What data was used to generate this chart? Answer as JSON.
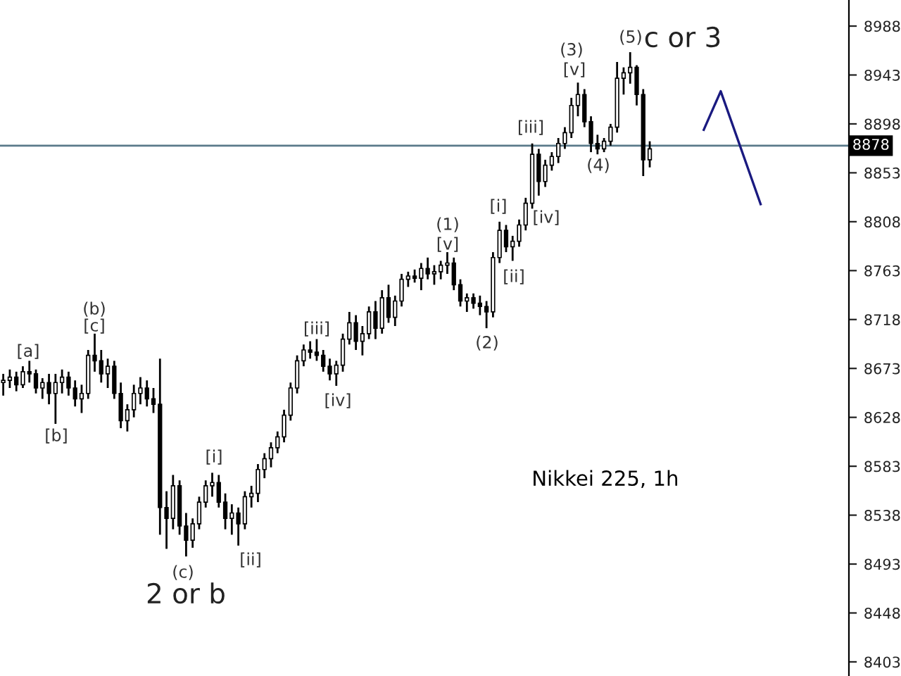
{
  "chart_data": {
    "type": "candlestick",
    "title": "Nikkei 225, 1h",
    "categories": [
      null,
      null,
      null,
      null,
      null,
      null,
      null,
      null,
      null,
      null,
      null,
      null,
      null,
      null,
      null,
      null,
      null,
      null,
      null,
      null,
      null,
      null,
      null,
      null,
      null,
      null,
      null,
      null,
      null,
      null,
      null,
      null,
      null,
      null,
      null,
      null,
      null,
      null,
      null,
      null,
      null,
      null,
      null,
      null,
      null,
      null,
      null,
      null,
      null,
      null,
      null,
      null,
      null,
      null,
      null,
      null,
      null,
      null,
      null,
      null,
      null,
      null,
      null,
      null,
      null,
      null,
      null,
      null,
      null,
      null,
      null,
      null,
      null,
      null,
      null,
      null,
      null,
      null,
      null,
      null,
      null,
      null,
      null,
      null,
      null,
      null,
      null,
      null,
      null,
      null,
      null,
      null,
      null,
      null,
      null,
      null,
      null,
      null,
      null,
      null,
      null,
      null,
      null,
      null,
      null,
      null,
      null,
      null,
      null,
      null,
      null,
      null,
      null,
      null,
      null,
      null,
      null,
      null,
      null,
      null,
      null,
      null,
      null,
      null,
      null,
      null,
      null,
      null,
      null,
      null
    ],
    "ohlc": [
      [
        8660,
        8668,
        8648,
        8662
      ],
      [
        8662,
        8672,
        8655,
        8665
      ],
      [
        8665,
        8670,
        8652,
        8658
      ],
      [
        8658,
        8675,
        8655,
        8670
      ],
      [
        8670,
        8680,
        8660,
        8668
      ],
      [
        8668,
        8672,
        8650,
        8655
      ],
      [
        8655,
        8664,
        8645,
        8660
      ],
      [
        8660,
        8668,
        8640,
        8650
      ],
      [
        8650,
        8668,
        8622,
        8660
      ],
      [
        8660,
        8672,
        8650,
        8665
      ],
      [
        8665,
        8670,
        8648,
        8655
      ],
      [
        8655,
        8662,
        8638,
        8645
      ],
      [
        8645,
        8658,
        8632,
        8650
      ],
      [
        8650,
        8690,
        8645,
        8685
      ],
      [
        8685,
        8705,
        8670,
        8680
      ],
      [
        8680,
        8690,
        8660,
        8668
      ],
      [
        8668,
        8682,
        8655,
        8675
      ],
      [
        8675,
        8680,
        8645,
        8650
      ],
      [
        8650,
        8660,
        8618,
        8625
      ],
      [
        8625,
        8640,
        8615,
        8635
      ],
      [
        8635,
        8658,
        8628,
        8650
      ],
      [
        8650,
        8665,
        8640,
        8655
      ],
      [
        8655,
        8662,
        8638,
        8645
      ],
      [
        8645,
        8655,
        8632,
        8640
      ],
      [
        8640,
        8682,
        8520,
        8545
      ],
      [
        8545,
        8560,
        8507,
        8535
      ],
      [
        8535,
        8575,
        8525,
        8565
      ],
      [
        8565,
        8570,
        8520,
        8528
      ],
      [
        8528,
        8540,
        8500,
        8515
      ],
      [
        8515,
        8535,
        8508,
        8530
      ],
      [
        8530,
        8555,
        8525,
        8550
      ],
      [
        8550,
        8570,
        8545,
        8565
      ],
      [
        8565,
        8577,
        8555,
        8568
      ],
      [
        8568,
        8575,
        8545,
        8550
      ],
      [
        8550,
        8558,
        8525,
        8535
      ],
      [
        8535,
        8548,
        8520,
        8540
      ],
      [
        8540,
        8545,
        8510,
        8530
      ],
      [
        8530,
        8560,
        8525,
        8555
      ],
      [
        8555,
        8565,
        8545,
        8558
      ],
      [
        8558,
        8585,
        8550,
        8580
      ],
      [
        8580,
        8595,
        8572,
        8590
      ],
      [
        8590,
        8605,
        8582,
        8600
      ],
      [
        8600,
        8615,
        8595,
        8610
      ],
      [
        8610,
        8635,
        8605,
        8630
      ],
      [
        8630,
        8660,
        8625,
        8655
      ],
      [
        8655,
        8685,
        8650,
        8680
      ],
      [
        8680,
        8695,
        8675,
        8690
      ],
      [
        8690,
        8698,
        8682,
        8688
      ],
      [
        8688,
        8700,
        8680,
        8685
      ],
      [
        8685,
        8690,
        8670,
        8675
      ],
      [
        8675,
        8682,
        8662,
        8668
      ],
      [
        8668,
        8680,
        8657,
        8676
      ],
      [
        8676,
        8705,
        8670,
        8700
      ],
      [
        8700,
        8725,
        8695,
        8715
      ],
      [
        8715,
        8722,
        8690,
        8698
      ],
      [
        8698,
        8712,
        8685,
        8705
      ],
      [
        8705,
        8730,
        8700,
        8725
      ],
      [
        8725,
        8735,
        8700,
        8710
      ],
      [
        8710,
        8745,
        8705,
        8738
      ],
      [
        8738,
        8750,
        8715,
        8720
      ],
      [
        8720,
        8740,
        8712,
        8735
      ],
      [
        8735,
        8760,
        8730,
        8755
      ],
      [
        8755,
        8762,
        8748,
        8758
      ],
      [
        8758,
        8764,
        8752,
        8756
      ],
      [
        8756,
        8770,
        8745,
        8765
      ],
      [
        8765,
        8775,
        8755,
        8760
      ],
      [
        8760,
        8768,
        8750,
        8762
      ],
      [
        8762,
        8772,
        8755,
        8768
      ],
      [
        8768,
        8780,
        8760,
        8770
      ],
      [
        8770,
        8775,
        8745,
        8750
      ],
      [
        8750,
        8755,
        8730,
        8735
      ],
      [
        8735,
        8742,
        8725,
        8738
      ],
      [
        8738,
        8742,
        8728,
        8733
      ],
      [
        8733,
        8740,
        8722,
        8730
      ],
      [
        8730,
        8735,
        8710,
        8725
      ],
      [
        8725,
        8780,
        8720,
        8775
      ],
      [
        8775,
        8808,
        8770,
        8800
      ],
      [
        8800,
        8805,
        8780,
        8785
      ],
      [
        8785,
        8795,
        8772,
        8790
      ],
      [
        8790,
        8810,
        8785,
        8805
      ],
      [
        8805,
        8830,
        8800,
        8825
      ],
      [
        8825,
        8880,
        8820,
        8870
      ],
      [
        8870,
        8875,
        8832,
        8845
      ],
      [
        8845,
        8865,
        8840,
        8860
      ],
      [
        8860,
        8872,
        8855,
        8868
      ],
      [
        8868,
        8885,
        8862,
        8880
      ],
      [
        8880,
        8895,
        8875,
        8890
      ],
      [
        8890,
        8922,
        8885,
        8915
      ],
      [
        8915,
        8936,
        8905,
        8925
      ],
      [
        8925,
        8930,
        8895,
        8900
      ],
      [
        8900,
        8905,
        8872,
        8880
      ],
      [
        8880,
        8888,
        8870,
        8875
      ],
      [
        8875,
        8885,
        8872,
        8882
      ],
      [
        8882,
        8898,
        8878,
        8895
      ],
      [
        8895,
        8955,
        8890,
        8940
      ],
      [
        8940,
        8950,
        8925,
        8945
      ],
      [
        8945,
        8964,
        8935,
        8950
      ],
      [
        8950,
        8952,
        8915,
        8925
      ],
      [
        8925,
        8930,
        8850,
        8865
      ],
      [
        8865,
        8882,
        8858,
        8875
      ],
      null,
      null,
      null,
      null,
      null,
      null,
      null,
      null,
      null,
      null,
      null,
      null,
      null,
      null,
      null,
      null,
      null,
      null,
      null,
      null,
      null,
      null,
      null,
      null,
      null,
      null,
      null,
      null,
      null,
      null
    ],
    "color": "#000000",
    "ylim": [
      8390,
      9012
    ],
    "yticks": [
      8403,
      8448,
      8493,
      8538,
      8583,
      8628,
      8673,
      8718,
      8763,
      8808,
      8853,
      8898,
      8943,
      8988
    ],
    "tick_labels": "y",
    "ref_lines": [
      {
        "axis": "y",
        "value": 8878,
        "label": "8878",
        "color": "#5a7a8a"
      }
    ],
    "annotations": [
      "[a]",
      "[b]",
      "(b)",
      "[c]",
      "(c)",
      "[i]",
      "[ii]",
      "[iii]",
      "[iv]",
      "(1)",
      "[v]",
      "(2)",
      "[i]",
      "[ii]",
      "[iii]",
      "[iv]",
      "(3)",
      "[v]",
      "(4)",
      "(5)",
      "2 or b",
      "c or 3"
    ]
  }
}
